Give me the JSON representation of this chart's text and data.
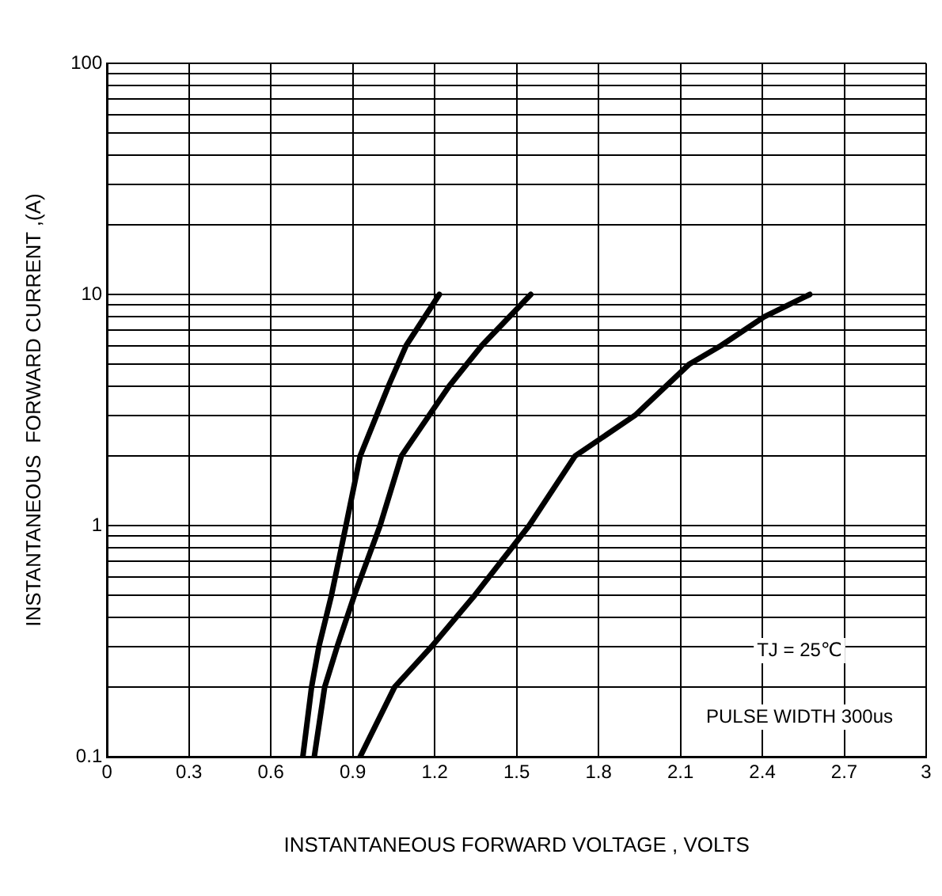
{
  "chart_data": {
    "type": "line",
    "xlabel": "INSTANTANEOUS FORWARD VOLTAGE , VOLTS",
    "ylabel": "INSTANTANEOUS  FORWARD CURRENT ,(A)",
    "annotations": [
      "TJ = 25℃",
      "PULSE WIDTH 300us"
    ],
    "log": "y",
    "grid": true,
    "legend": false,
    "marker": "none",
    "line_style": "solid",
    "xlim": [
      0,
      3
    ],
    "xticks": [
      0,
      0.3,
      0.6,
      0.9,
      1.2,
      1.5,
      1.8,
      2.1,
      2.4,
      2.7,
      3
    ],
    "ylim": [
      0.1,
      100
    ],
    "yticks": [
      0.1,
      {
        "value": 0.2,
        "label": null
      },
      {
        "value": 0.3,
        "label": null
      },
      {
        "value": 0.4,
        "label": null
      },
      {
        "value": 0.5,
        "label": null
      },
      {
        "value": 0.6,
        "label": null
      },
      {
        "value": 0.7,
        "label": null
      },
      {
        "value": 0.8,
        "label": null
      },
      {
        "value": 0.9,
        "label": null
      },
      1,
      {
        "value": 2,
        "label": null
      },
      {
        "value": 3,
        "label": null
      },
      {
        "value": 4,
        "label": null
      },
      {
        "value": 5,
        "label": null
      },
      {
        "value": 6,
        "label": null
      },
      {
        "value": 7,
        "label": null
      },
      {
        "value": 8,
        "label": null
      },
      {
        "value": 9,
        "label": null
      },
      10,
      {
        "value": 20,
        "label": null
      },
      {
        "value": 30,
        "label": null
      },
      {
        "value": 40,
        "label": null
      },
      {
        "value": 50,
        "label": null
      },
      {
        "value": 60,
        "label": null
      },
      {
        "value": 70,
        "label": null
      },
      {
        "value": 80,
        "label": null
      },
      {
        "value": 90,
        "label": null
      },
      100
    ],
    "series": [
      {
        "color": "#000000",
        "x": [
          0.717,
          0.749,
          0.776,
          0.822,
          0.875,
          0.927,
          1.03,
          1.095,
          1.217
        ],
        "values": [
          0.1,
          0.2,
          0.3,
          0.5,
          1,
          2,
          4,
          6,
          10
        ]
      },
      {
        "color": "#000000",
        "x": [
          0.759,
          0.797,
          0.843,
          0.906,
          1.0,
          1.078,
          1.252,
          1.372,
          1.552
        ],
        "values": [
          0.1,
          0.2,
          0.3,
          0.5,
          1,
          2,
          4,
          6,
          10
        ]
      },
      {
        "color": "#000000",
        "x": [
          0.927,
          1.053,
          1.189,
          1.347,
          1.546,
          1.714,
          1.934,
          2.133,
          2.248,
          2.406,
          2.574
        ],
        "values": [
          0.1,
          0.2,
          0.3,
          0.5,
          1,
          2,
          3,
          5,
          6,
          8,
          10
        ]
      }
    ]
  }
}
